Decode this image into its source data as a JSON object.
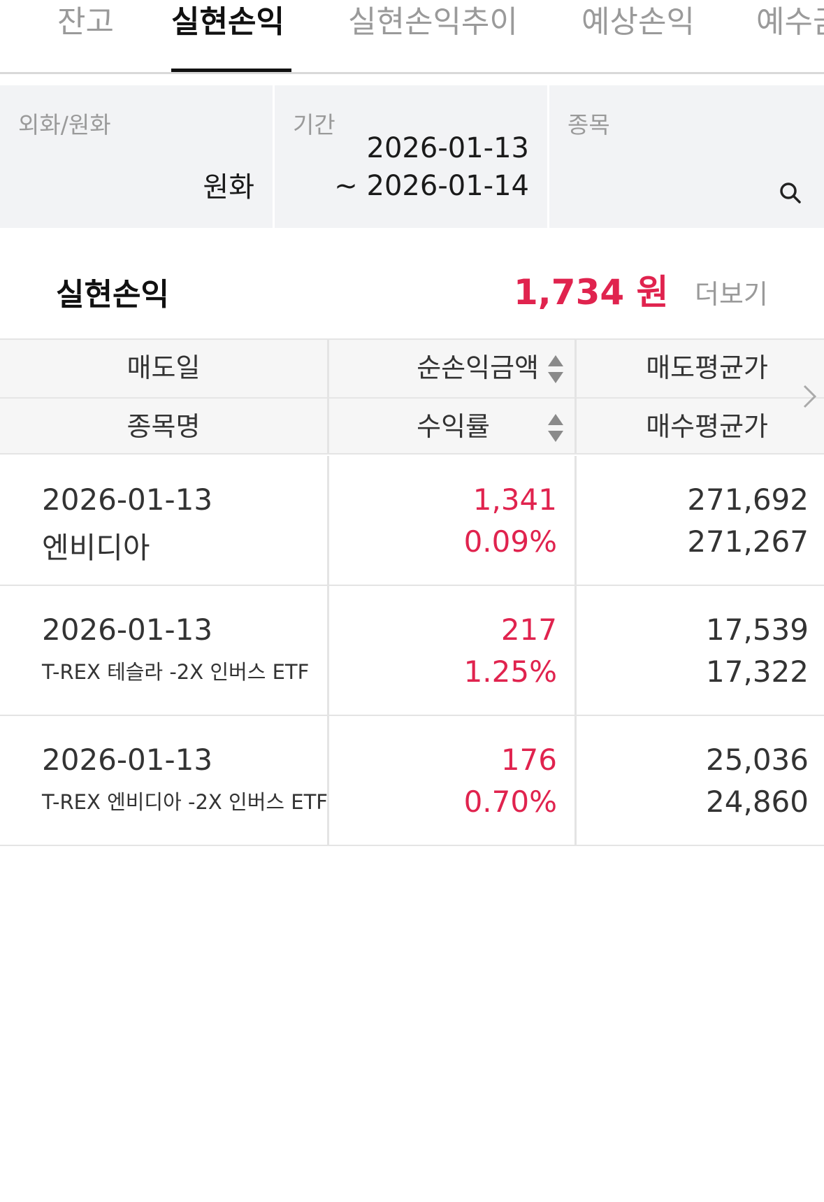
{
  "tabs": [
    {
      "label": "잔고",
      "active": false
    },
    {
      "label": "실현손익",
      "active": true
    },
    {
      "label": "실현손익추이",
      "active": false
    },
    {
      "label": "예상손익",
      "active": false
    },
    {
      "label": "예수금",
      "active": false
    }
  ],
  "filters": {
    "currency": {
      "label": "외화/원화",
      "value": "원화"
    },
    "period": {
      "label": "기간",
      "start": "2026-01-13",
      "end": "~ 2026-01-14"
    },
    "stock": {
      "label": "종목",
      "icon": "search-icon"
    }
  },
  "summary": {
    "title": "실현손익",
    "amount": "1,734 원",
    "more_label": "더보기"
  },
  "table": {
    "headers": {
      "row1": [
        "매도일",
        "순손익금액",
        "매도평균가"
      ],
      "row2": [
        "종목명",
        "수익률",
        "매수평균가"
      ]
    },
    "rows": [
      {
        "sell_date": "2026-01-13",
        "name": "엔비디아",
        "net_pnl": "1,341",
        "return_rate": "0.09%",
        "sell_avg": "271,692",
        "buy_avg": "271,267"
      },
      {
        "sell_date": "2026-01-13",
        "name": "T-REX 테슬라 -2X 인버스 ETF",
        "net_pnl": "217",
        "return_rate": "1.25%",
        "sell_avg": "17,539",
        "buy_avg": "17,322"
      },
      {
        "sell_date": "2026-01-13",
        "name": "T-REX 엔비디아 -2X 인버스 ETF",
        "net_pnl": "176",
        "return_rate": "0.70%",
        "sell_avg": "25,036",
        "buy_avg": "24,860"
      }
    ]
  },
  "colors": {
    "profit": "#e0234e",
    "muted": "#9a9a9a",
    "filter_bg": "#f2f3f5"
  }
}
